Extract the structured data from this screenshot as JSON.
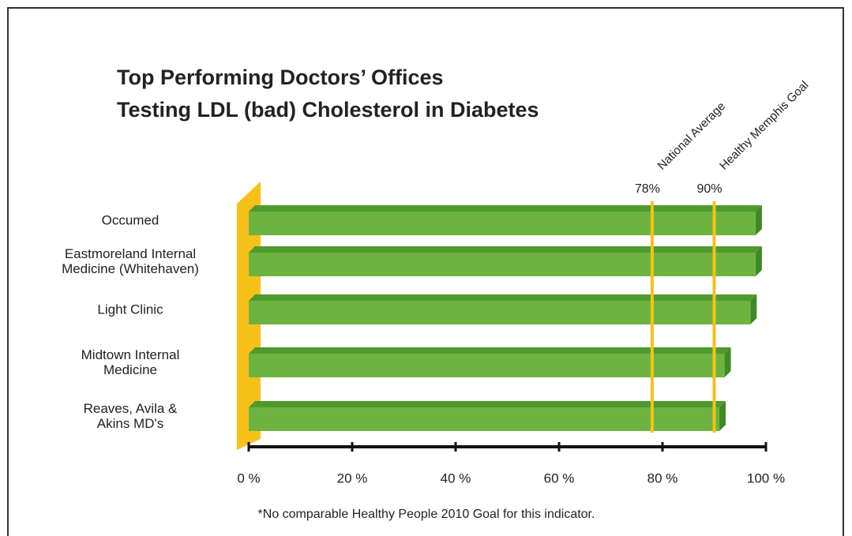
{
  "chart_data": {
    "type": "bar",
    "title": "Top Performing Doctors’ Offices",
    "subtitle": "Testing LDL (bad) Cholesterol in Diabetes",
    "categories": [
      "Occumed",
      "Eastmoreland Internal Medicine (Whitehaven)",
      "Light Clinic",
      "Midtown Internal Medicine",
      "Reaves, Avila & Akins MD's"
    ],
    "values": [
      98,
      98,
      97,
      92,
      91
    ],
    "color": "#6db33f",
    "xlim": [
      0,
      100
    ],
    "xticks": [
      {
        "value": 0,
        "label": "0 %"
      },
      {
        "value": 20,
        "label": "20 %"
      },
      {
        "value": 40,
        "label": "40 %"
      },
      {
        "value": 60,
        "label": "60 %"
      },
      {
        "value": 80,
        "label": "80 %"
      },
      {
        "value": 100,
        "label": "100 %"
      }
    ],
    "reference_lines": [
      {
        "name": "National Average",
        "value": 78,
        "label": "78%",
        "color": "#f7c11a"
      },
      {
        "name": "Healthy Memphis Goal",
        "value": 90,
        "label": "90%",
        "color": "#f7c11a"
      }
    ],
    "footnote": "*No comparable Healthy People 2010 Goal for this indicator."
  }
}
